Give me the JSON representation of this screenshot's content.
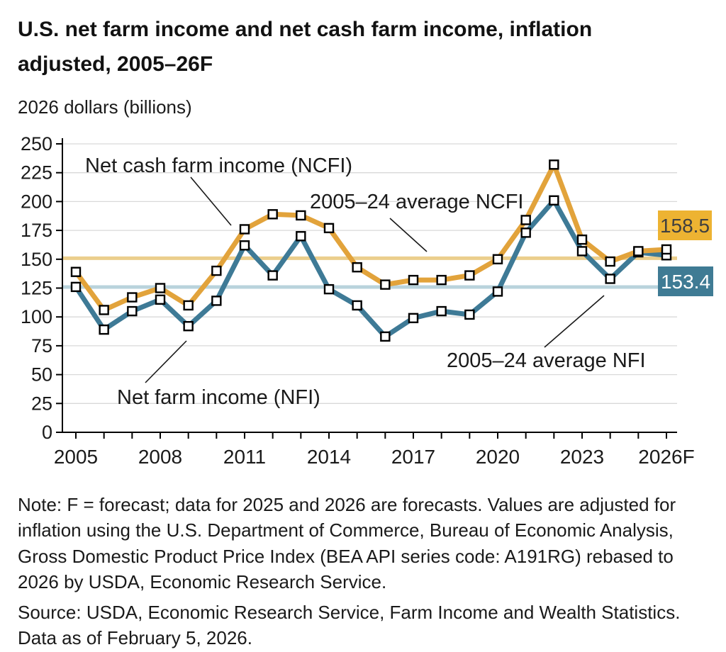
{
  "title": "U.S. net farm income and net cash farm income, inflation adjusted, 2005–26F",
  "subtitle": "2026 dollars (billions)",
  "note": "Note: F = forecast; data for 2025 and 2026 are forecasts. Values are adjusted for inflation using the U.S. Department of Commerce, Bureau of Economic Analysis, Gross Domestic Product Price Index (BEA API series code: A191RG) rebased to 2026 by USDA, Economic Research Service.",
  "source": "Source: USDA, Economic Research Service, Farm Income and Wealth Statistics. Data as of February 5, 2026.",
  "chart_data": {
    "type": "line",
    "x": [
      2005,
      2006,
      2007,
      2008,
      2009,
      2010,
      2011,
      2012,
      2013,
      2014,
      2015,
      2016,
      2017,
      2018,
      2019,
      2020,
      2021,
      2022,
      2023,
      2024,
      2025,
      2026
    ],
    "x_tick_labels": [
      {
        "label": "2005",
        "year": 2005
      },
      {
        "label": "2008",
        "year": 2008
      },
      {
        "label": "2011",
        "year": 2011
      },
      {
        "label": "2014",
        "year": 2014
      },
      {
        "label": "2017",
        "year": 2017
      },
      {
        "label": "2020",
        "year": 2020
      },
      {
        "label": "2023",
        "year": 2023
      },
      {
        "label": "2026F",
        "year": 2026
      }
    ],
    "ylim": [
      0,
      250
    ],
    "y_tick_step": 25,
    "grid": true,
    "legend_position": "annotated-inline",
    "series": [
      {
        "name": "Net cash farm income (NCFI)",
        "id": "ncfi",
        "color": "#E2A33B",
        "values": [
          139,
          106,
          117,
          125,
          110,
          140,
          176,
          189,
          188,
          177,
          143,
          128,
          132,
          132,
          136,
          150,
          184,
          232,
          167,
          148,
          157,
          158.5
        ]
      },
      {
        "name": "Net farm income (NFI)",
        "id": "nfi",
        "color": "#3E7A96",
        "values": [
          126,
          89,
          105,
          115,
          92,
          114,
          162,
          136,
          170,
          124,
          110,
          83,
          99,
          105,
          102,
          122,
          173,
          201,
          157,
          133,
          156,
          153.4
        ]
      }
    ],
    "average_lines": [
      {
        "name": "2005–24 average NCFI",
        "id": "avg-ncfi",
        "value": 150.9,
        "color": "#EBCE8C"
      },
      {
        "name": "2005–24 average NFI",
        "id": "avg-nfi",
        "value": 125.9,
        "color": "#B9D3DC"
      }
    ],
    "end_value_labels": [
      {
        "series": "ncfi",
        "text": "158.5",
        "box_color": "#EDB332",
        "text_color": "#3F3F3F"
      },
      {
        "series": "nfi",
        "text": "153.4",
        "box_color": "#3F7B94",
        "text_color": "#FFFFFF"
      }
    ],
    "annotations": [
      {
        "id": "ncfi-label",
        "text": "Net cash farm income (NCFI)"
      },
      {
        "id": "avg-ncfi-label",
        "text": "2005–24 average NCFI"
      },
      {
        "id": "avg-nfi-label",
        "text": "2005–24 average NFI"
      },
      {
        "id": "nfi-label",
        "text": "Net farm income (NFI)"
      }
    ],
    "axis_color": "#000000",
    "gridline_color": "#D9D9D9",
    "marker": {
      "shape": "square",
      "fill": "#FFFFFF",
      "stroke": "#000000"
    }
  }
}
